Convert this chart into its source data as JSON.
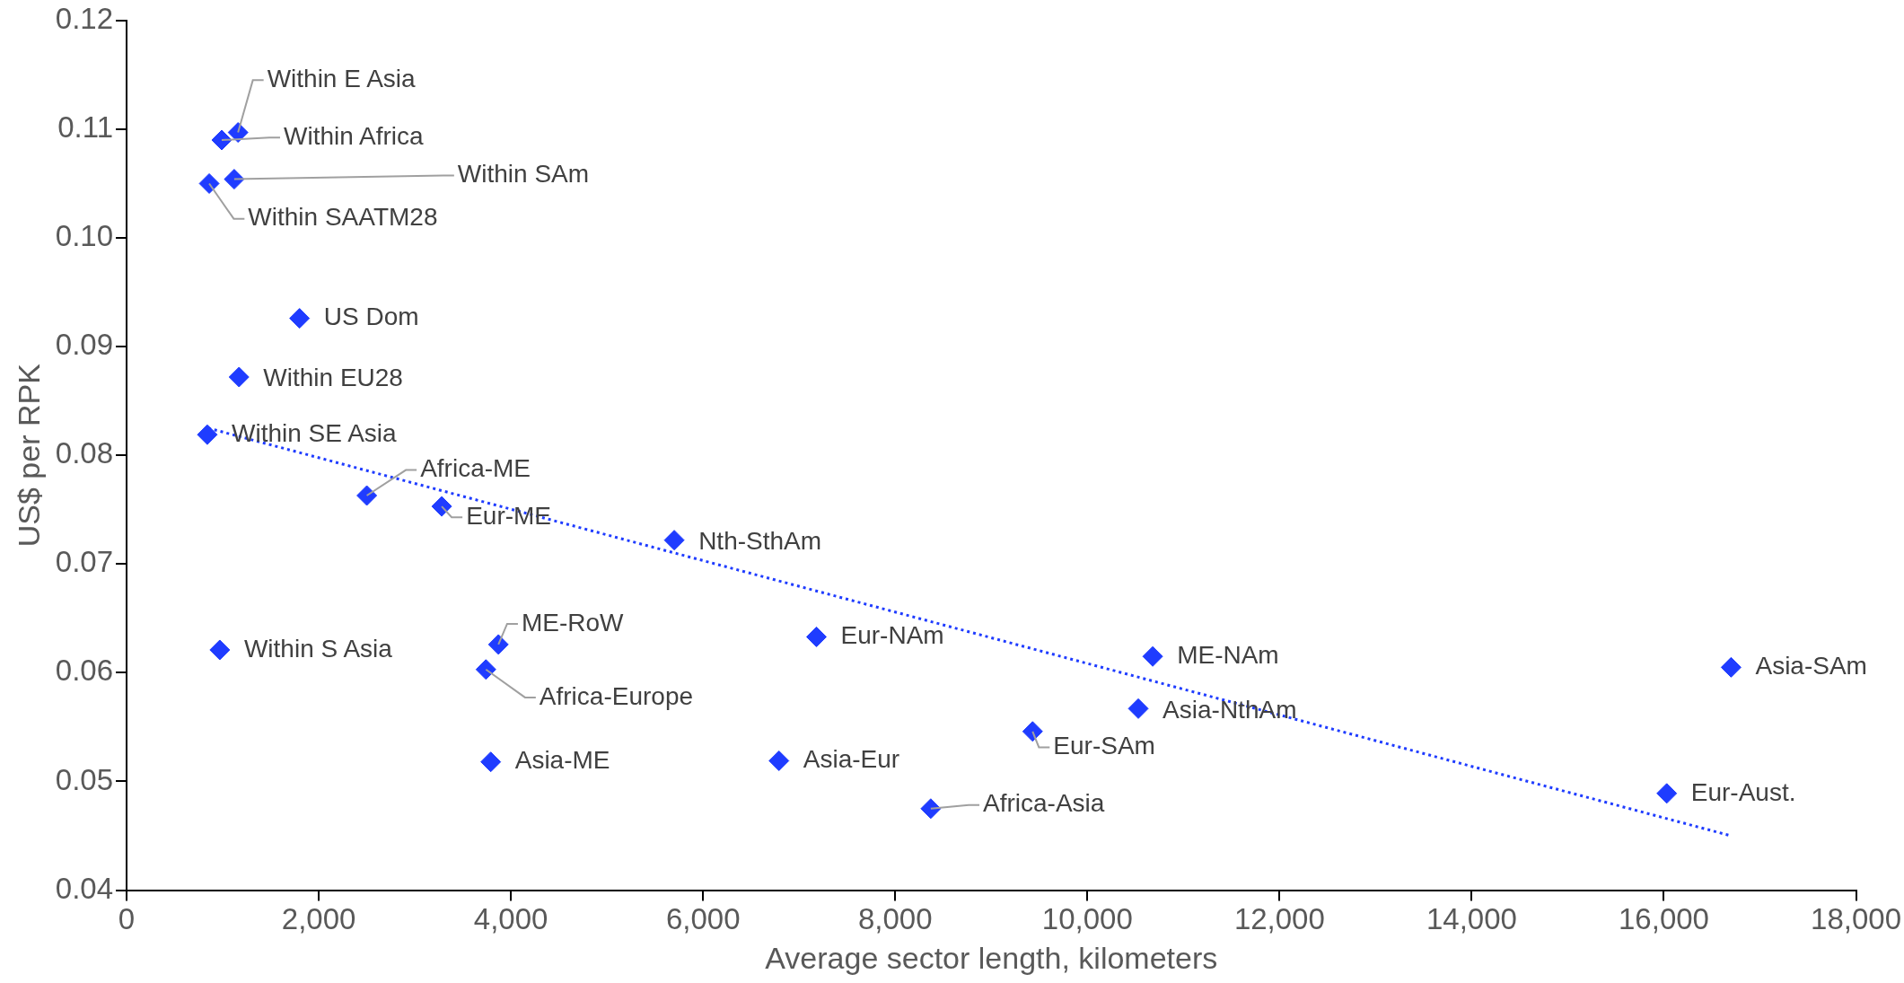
{
  "chart_data": {
    "type": "scatter",
    "xlabel": "Average sector length, kilometers",
    "ylabel": "US$ per RPK",
    "xlim": [
      0,
      18000
    ],
    "xticks": [
      {
        "value": 0,
        "label": "0"
      },
      {
        "value": 2000,
        "label": "2,000"
      },
      {
        "value": 4000,
        "label": "4,000"
      },
      {
        "value": 6000,
        "label": "6,000"
      },
      {
        "value": 8000,
        "label": "8,000"
      },
      {
        "value": 10000,
        "label": "10,000"
      },
      {
        "value": 12000,
        "label": "12,000"
      },
      {
        "value": 14000,
        "label": "14,000"
      },
      {
        "value": 16000,
        "label": "16,000"
      },
      {
        "value": 18000,
        "label": "18,000"
      }
    ],
    "ylim": [
      0.04,
      0.12
    ],
    "yticks": [
      {
        "value": 0.04,
        "label": "0.04"
      },
      {
        "value": 0.05,
        "label": "0.05"
      },
      {
        "value": 0.06,
        "label": "0.06"
      },
      {
        "value": 0.07,
        "label": "0.07"
      },
      {
        "value": 0.08,
        "label": "0.08"
      },
      {
        "value": 0.09,
        "label": "0.09"
      },
      {
        "value": 0.1,
        "label": "0.10"
      },
      {
        "value": 0.11,
        "label": "0.11"
      },
      {
        "value": 0.12,
        "label": "0.12"
      }
    ],
    "grid": false,
    "legend": false,
    "marker": "diamond",
    "series": [
      {
        "type": "scatter",
        "color": "#1f3cff",
        "x": [
          1160,
          990,
          1120,
          860,
          1800,
          1170,
          840,
          2500,
          3280,
          5700,
          970,
          3870,
          3740,
          3790,
          7180,
          6790,
          8370,
          9430,
          10530,
          10680,
          16700,
          16030
        ],
        "values": [
          0.1097,
          0.109,
          0.1054,
          0.105,
          0.0926,
          0.0872,
          0.0819,
          0.0763,
          0.0753,
          0.0722,
          0.0621,
          0.0626,
          0.0603,
          0.0518,
          0.0633,
          0.0519,
          0.0475,
          0.0546,
          0.0567,
          0.0615,
          0.0605,
          0.0489
        ]
      },
      {
        "type": "line",
        "color": "#1f3cff",
        "line_style": "dotted",
        "marker": "none",
        "x": [
          850,
          16700
        ],
        "values": [
          0.0825,
          0.045
        ]
      }
    ],
    "annotations": [
      {
        "text": "Within E Asia",
        "x": 1160,
        "y": 0.1097
      },
      {
        "text": "Within Africa",
        "x": 990,
        "y": 0.109
      },
      {
        "text": "Within SAm",
        "x": 1120,
        "y": 0.1054
      },
      {
        "text": "Within SAATM28",
        "x": 860,
        "y": 0.105
      },
      {
        "text": "US Dom",
        "x": 1800,
        "y": 0.0926
      },
      {
        "text": "Within EU28",
        "x": 1170,
        "y": 0.0872
      },
      {
        "text": "Within SE Asia",
        "x": 840,
        "y": 0.0819
      },
      {
        "text": "Africa-ME",
        "x": 2500,
        "y": 0.0763
      },
      {
        "text": "Eur-ME",
        "x": 3280,
        "y": 0.0753
      },
      {
        "text": "Nth-SthAm",
        "x": 5700,
        "y": 0.0722
      },
      {
        "text": "Within S Asia",
        "x": 970,
        "y": 0.0621
      },
      {
        "text": "ME-RoW",
        "x": 3870,
        "y": 0.0626
      },
      {
        "text": "Africa-Europe",
        "x": 3740,
        "y": 0.0603
      },
      {
        "text": "Asia-ME",
        "x": 3790,
        "y": 0.0518
      },
      {
        "text": "Eur-NAm",
        "x": 7180,
        "y": 0.0633
      },
      {
        "text": "Asia-Eur",
        "x": 6790,
        "y": 0.0519
      },
      {
        "text": "Africa-Asia",
        "x": 8370,
        "y": 0.0475
      },
      {
        "text": "Eur-SAm",
        "x": 9430,
        "y": 0.0546
      },
      {
        "text": "Asia-NthAm",
        "x": 10530,
        "y": 0.0567
      },
      {
        "text": "ME-NAm",
        "x": 10680,
        "y": 0.0615
      },
      {
        "text": "Asia-SAm",
        "x": 16700,
        "y": 0.0605
      },
      {
        "text": "Eur-Aust.",
        "x": 16030,
        "y": 0.0489
      }
    ]
  }
}
